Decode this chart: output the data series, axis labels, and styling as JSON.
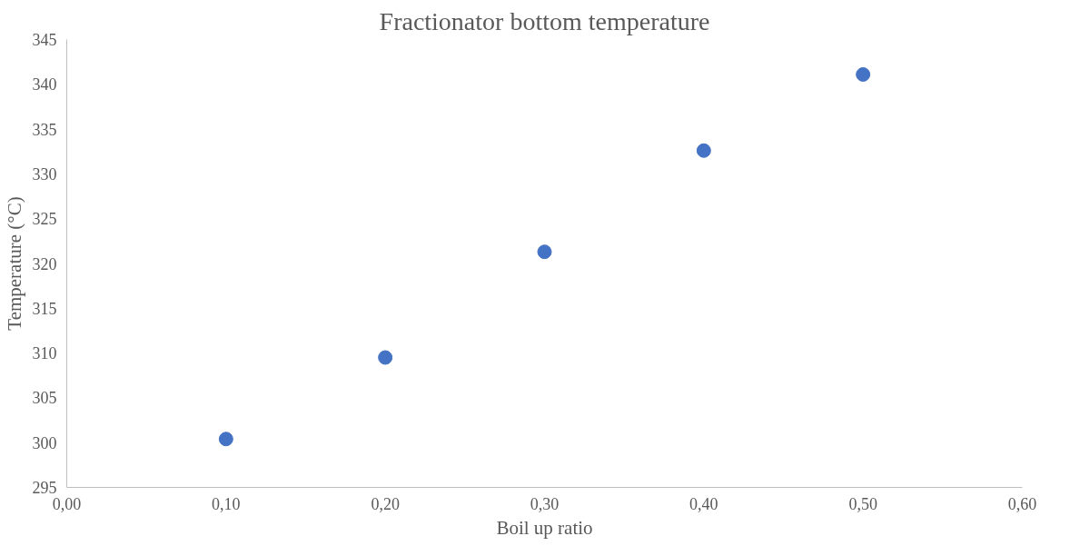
{
  "chart_data": {
    "type": "scatter",
    "title": "Fractionator bottom temperature",
    "xlabel": "Boil up ratio",
    "ylabel": "Temperature (°C)",
    "series": [
      {
        "color": "#4472c4",
        "x": [
          0.1,
          0.2,
          0.3,
          0.4,
          0.5
        ],
        "values": [
          300.4,
          309.5,
          321.3,
          332.6,
          341.1
        ]
      }
    ],
    "xlim": [
      0,
      0.6
    ],
    "xticks": [
      {
        "value": 0,
        "label": "0,00"
      },
      {
        "value": 0.1,
        "label": "0,10"
      },
      {
        "value": 0.2,
        "label": "0,20"
      },
      {
        "value": 0.3,
        "label": "0,30"
      },
      {
        "value": 0.4,
        "label": "0,40"
      },
      {
        "value": 0.5,
        "label": "0,50"
      },
      {
        "value": 0.6,
        "label": "0,60"
      }
    ],
    "ylim": [
      295,
      345
    ],
    "yticks": [
      295,
      300,
      305,
      310,
      315,
      320,
      325,
      330,
      335,
      340,
      345
    ],
    "grid": false,
    "marker": "circle"
  }
}
